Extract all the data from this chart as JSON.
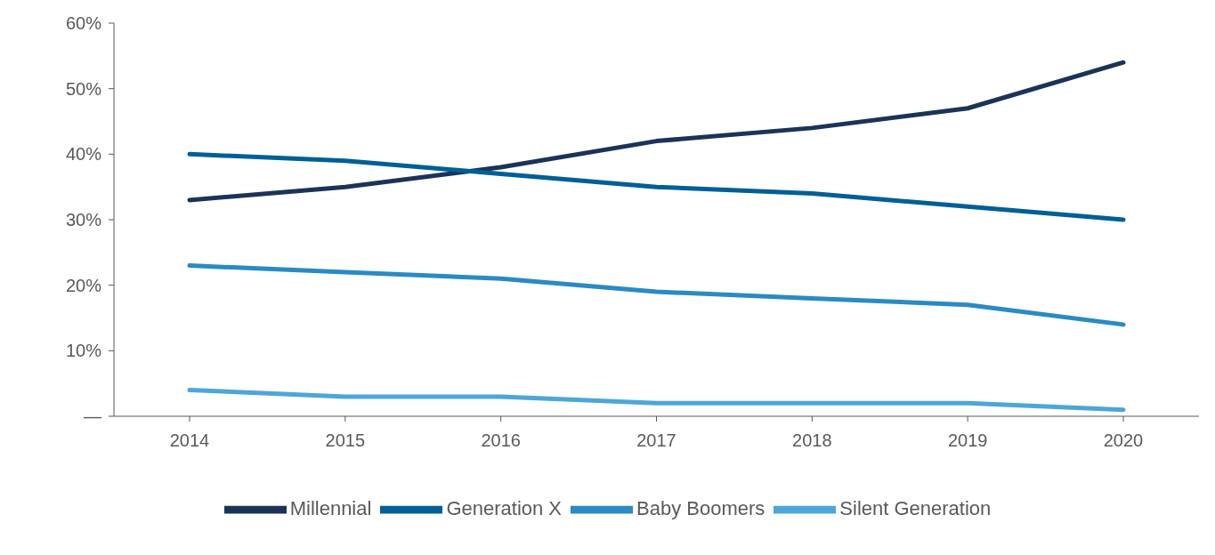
{
  "chart_data": {
    "type": "line",
    "categories": [
      "2014",
      "2015",
      "2016",
      "2017",
      "2018",
      "2019",
      "2020"
    ],
    "series": [
      {
        "name": "Millennial",
        "color": "#1b3358",
        "values": [
          33,
          35,
          38,
          42,
          44,
          47,
          54
        ]
      },
      {
        "name": "Generation X",
        "color": "#005f97",
        "values": [
          40,
          39,
          37,
          35,
          34,
          32,
          30
        ]
      },
      {
        "name": "Baby Boomers",
        "color": "#2a8ac4",
        "values": [
          23,
          22,
          21,
          19,
          18,
          17,
          14
        ]
      },
      {
        "name": "Silent Generation",
        "color": "#4da6d9",
        "values": [
          4,
          3,
          3,
          2,
          2,
          2,
          1
        ]
      }
    ],
    "ylim": [
      0,
      60
    ],
    "yticks": [
      {
        "value": 0,
        "label": "—"
      },
      {
        "value": 10,
        "label": "10%"
      },
      {
        "value": 20,
        "label": "20%"
      },
      {
        "value": 30,
        "label": "30%"
      },
      {
        "value": 40,
        "label": "40%"
      },
      {
        "value": 50,
        "label": "50%"
      },
      {
        "value": 60,
        "label": "60%"
      }
    ],
    "grid": false,
    "legend": "bottom",
    "marker": "none",
    "line_style": "solid"
  }
}
